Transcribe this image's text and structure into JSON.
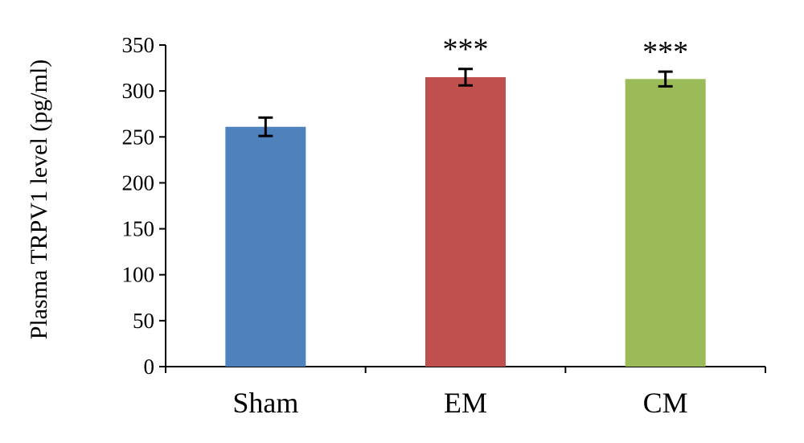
{
  "chart_data": {
    "type": "bar",
    "categories": [
      "Sham",
      "EM",
      "CM"
    ],
    "values": [
      261,
      315,
      313
    ],
    "errors": [
      10,
      9,
      8
    ],
    "significance": [
      "",
      "***",
      "***"
    ],
    "colors": [
      "#4f81bd",
      "#c0504d",
      "#9bbb59"
    ],
    "title": "",
    "xlabel": "",
    "ylabel": "Plasma TRPV1 level (pg/ml)",
    "ylim": [
      0,
      350
    ],
    "yticks": [
      0,
      50,
      100,
      150,
      200,
      250,
      300,
      350
    ],
    "grid": false,
    "legend": "none"
  }
}
